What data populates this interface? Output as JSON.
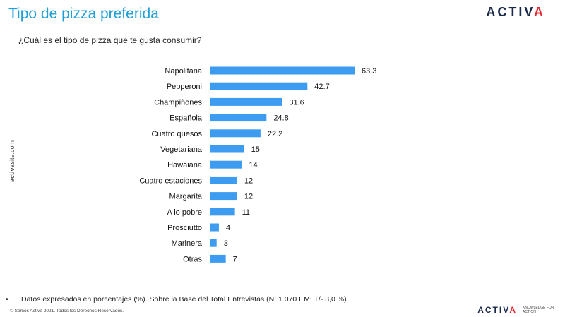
{
  "header": {
    "title": "Tipo de pizza preferida",
    "logo_main": "ACTIV",
    "logo_accent": "A"
  },
  "question": "¿Cuál es el tipo de pizza que te gusta consumir?",
  "side_brand": {
    "bold": "activa",
    "rest": "site.com"
  },
  "chart_data": {
    "type": "bar",
    "orientation": "horizontal",
    "title": "",
    "categories": [
      "Napolitana",
      "Pepperoni",
      "Champiñones",
      "Española",
      "Cuatro quesos",
      "Vegetariana",
      "Hawaiana",
      "Cuatro estaciones",
      "Margarita",
      "A lo pobre",
      "Prosciutto",
      "Marinera",
      "Otras"
    ],
    "values": [
      63.3,
      42.7,
      31.6,
      24.8,
      22.2,
      15,
      14,
      12,
      12,
      11,
      4,
      3,
      7
    ],
    "value_labels": [
      "63.3",
      "42.7",
      "31.6",
      "24.8",
      "22.2",
      "15",
      "14",
      "12",
      "12",
      "11",
      "4",
      "3",
      "7"
    ],
    "xlim": [
      0,
      63.3
    ],
    "xlabel": "",
    "ylabel": "",
    "grid": false,
    "bar_color": "#3e9cf0"
  },
  "footer": {
    "bullet": "•",
    "note": "Datos expresados en porcentajes (%). Sobre la Base del Total Entrevistas (N: 1.070  EM: +/- 3,0 %)",
    "copyright": "© Somos Activa 2021. Todos los Derechos Reservados.",
    "logo_main": "ACTIV",
    "logo_accent": "A",
    "tagline": "KNOWLEDGE FOR ACTION"
  },
  "colors": {
    "title": "#1f9fd8",
    "bar": "#3e9cf0",
    "brand_red": "#e3262f",
    "brand_navy": "#1b2a4a"
  }
}
